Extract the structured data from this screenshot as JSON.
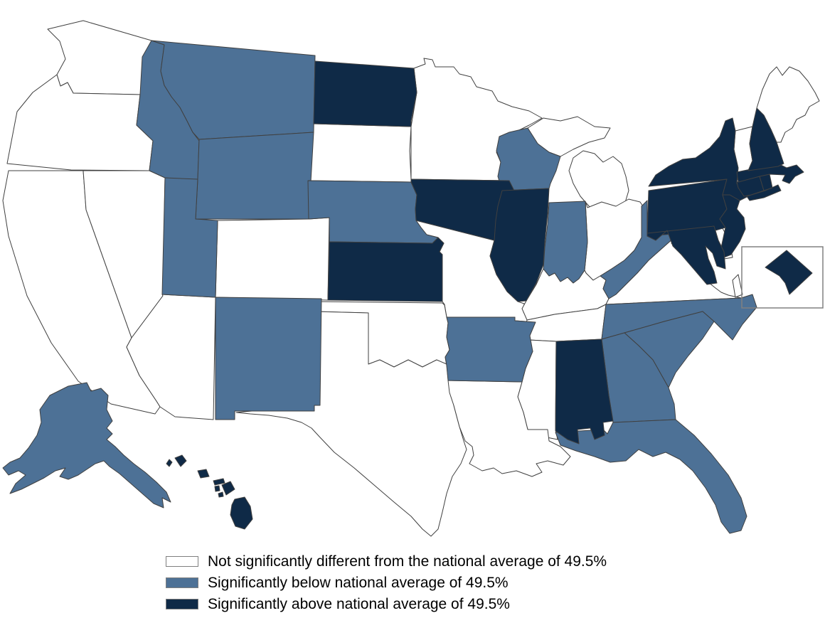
{
  "figure": {
    "type": "choropleth_us_map",
    "national_average": "49.5%",
    "background_color": "#ffffff"
  },
  "map": {
    "state_border_color": "#404040",
    "inset_box_border_color": "#808080",
    "categories": {
      "not_significant": {
        "label": "Not significantly different from the national average of 49.5%",
        "color": "#ffffff"
      },
      "below": {
        "label": "Significantly below national average of 49.5%",
        "color": "#4d7196"
      },
      "above": {
        "label": "Significantly above national average of 49.5%",
        "color": "#0f2a47"
      }
    }
  },
  "legend": {
    "items": [
      {
        "category": "not_significant",
        "label": "Not significantly different from the national average of 49.5%"
      },
      {
        "category": "below",
        "label": "Significantly below national average of 49.5%"
      },
      {
        "category": "above",
        "label": "Significantly above national average of 49.5%"
      }
    ]
  },
  "states": [
    {
      "id": "WA",
      "name": "Washington",
      "category": "not_significant"
    },
    {
      "id": "OR",
      "name": "Oregon",
      "category": "not_significant"
    },
    {
      "id": "CA",
      "name": "California",
      "category": "not_significant"
    },
    {
      "id": "NV",
      "name": "Nevada",
      "category": "not_significant"
    },
    {
      "id": "AZ",
      "name": "Arizona",
      "category": "not_significant"
    },
    {
      "id": "CO",
      "name": "Colorado",
      "category": "not_significant"
    },
    {
      "id": "SD",
      "name": "South Dakota",
      "category": "not_significant"
    },
    {
      "id": "MN",
      "name": "Minnesota",
      "category": "not_significant"
    },
    {
      "id": "MI",
      "name": "Michigan",
      "category": "not_significant"
    },
    {
      "id": "OH",
      "name": "Ohio",
      "category": "not_significant"
    },
    {
      "id": "MO",
      "name": "Missouri",
      "category": "not_significant"
    },
    {
      "id": "OK",
      "name": "Oklahoma",
      "category": "not_significant"
    },
    {
      "id": "TX",
      "name": "Texas",
      "category": "not_significant"
    },
    {
      "id": "KY",
      "name": "Kentucky",
      "category": "not_significant"
    },
    {
      "id": "TN",
      "name": "Tennessee",
      "category": "not_significant"
    },
    {
      "id": "VA",
      "name": "Virginia",
      "category": "not_significant"
    },
    {
      "id": "MS",
      "name": "Mississippi",
      "category": "not_significant"
    },
    {
      "id": "LA",
      "name": "Louisiana",
      "category": "not_significant"
    },
    {
      "id": "DE",
      "name": "Delaware",
      "category": "not_significant"
    },
    {
      "id": "VT",
      "name": "Vermont",
      "category": "not_significant"
    },
    {
      "id": "ME",
      "name": "Maine",
      "category": "not_significant"
    },
    {
      "id": "AK",
      "name": "Alaska",
      "category": "below"
    },
    {
      "id": "ID",
      "name": "Idaho",
      "category": "below"
    },
    {
      "id": "MT",
      "name": "Montana",
      "category": "below"
    },
    {
      "id": "WY",
      "name": "Wyoming",
      "category": "below"
    },
    {
      "id": "UT",
      "name": "Utah",
      "category": "below"
    },
    {
      "id": "NM",
      "name": "New Mexico",
      "category": "below"
    },
    {
      "id": "NE",
      "name": "Nebraska",
      "category": "below"
    },
    {
      "id": "WI",
      "name": "Wisconsin",
      "category": "below"
    },
    {
      "id": "IN",
      "name": "Indiana",
      "category": "below"
    },
    {
      "id": "WV",
      "name": "West Virginia",
      "category": "below"
    },
    {
      "id": "AR",
      "name": "Arkansas",
      "category": "below"
    },
    {
      "id": "NC",
      "name": "North Carolina",
      "category": "below"
    },
    {
      "id": "SC",
      "name": "South Carolina",
      "category": "below"
    },
    {
      "id": "GA",
      "name": "Georgia",
      "category": "below"
    },
    {
      "id": "FL",
      "name": "Florida",
      "category": "below"
    },
    {
      "id": "ND",
      "name": "North Dakota",
      "category": "above"
    },
    {
      "id": "KS",
      "name": "Kansas",
      "category": "above"
    },
    {
      "id": "IA",
      "name": "Iowa",
      "category": "above"
    },
    {
      "id": "IL",
      "name": "Illinois",
      "category": "above"
    },
    {
      "id": "AL",
      "name": "Alabama",
      "category": "above"
    },
    {
      "id": "HI",
      "name": "Hawaii",
      "category": "above"
    },
    {
      "id": "PA",
      "name": "Pennsylvania",
      "category": "above"
    },
    {
      "id": "NY",
      "name": "New York",
      "category": "above"
    },
    {
      "id": "NJ",
      "name": "New Jersey",
      "category": "above"
    },
    {
      "id": "MD",
      "name": "Maryland",
      "category": "above"
    },
    {
      "id": "CT",
      "name": "Connecticut",
      "category": "above"
    },
    {
      "id": "RI",
      "name": "Rhode Island",
      "category": "above"
    },
    {
      "id": "MA",
      "name": "Massachusetts",
      "category": "above"
    },
    {
      "id": "NH",
      "name": "New Hampshire",
      "category": "above"
    },
    {
      "id": "DC",
      "name": "District of Columbia",
      "category": "above"
    }
  ]
}
